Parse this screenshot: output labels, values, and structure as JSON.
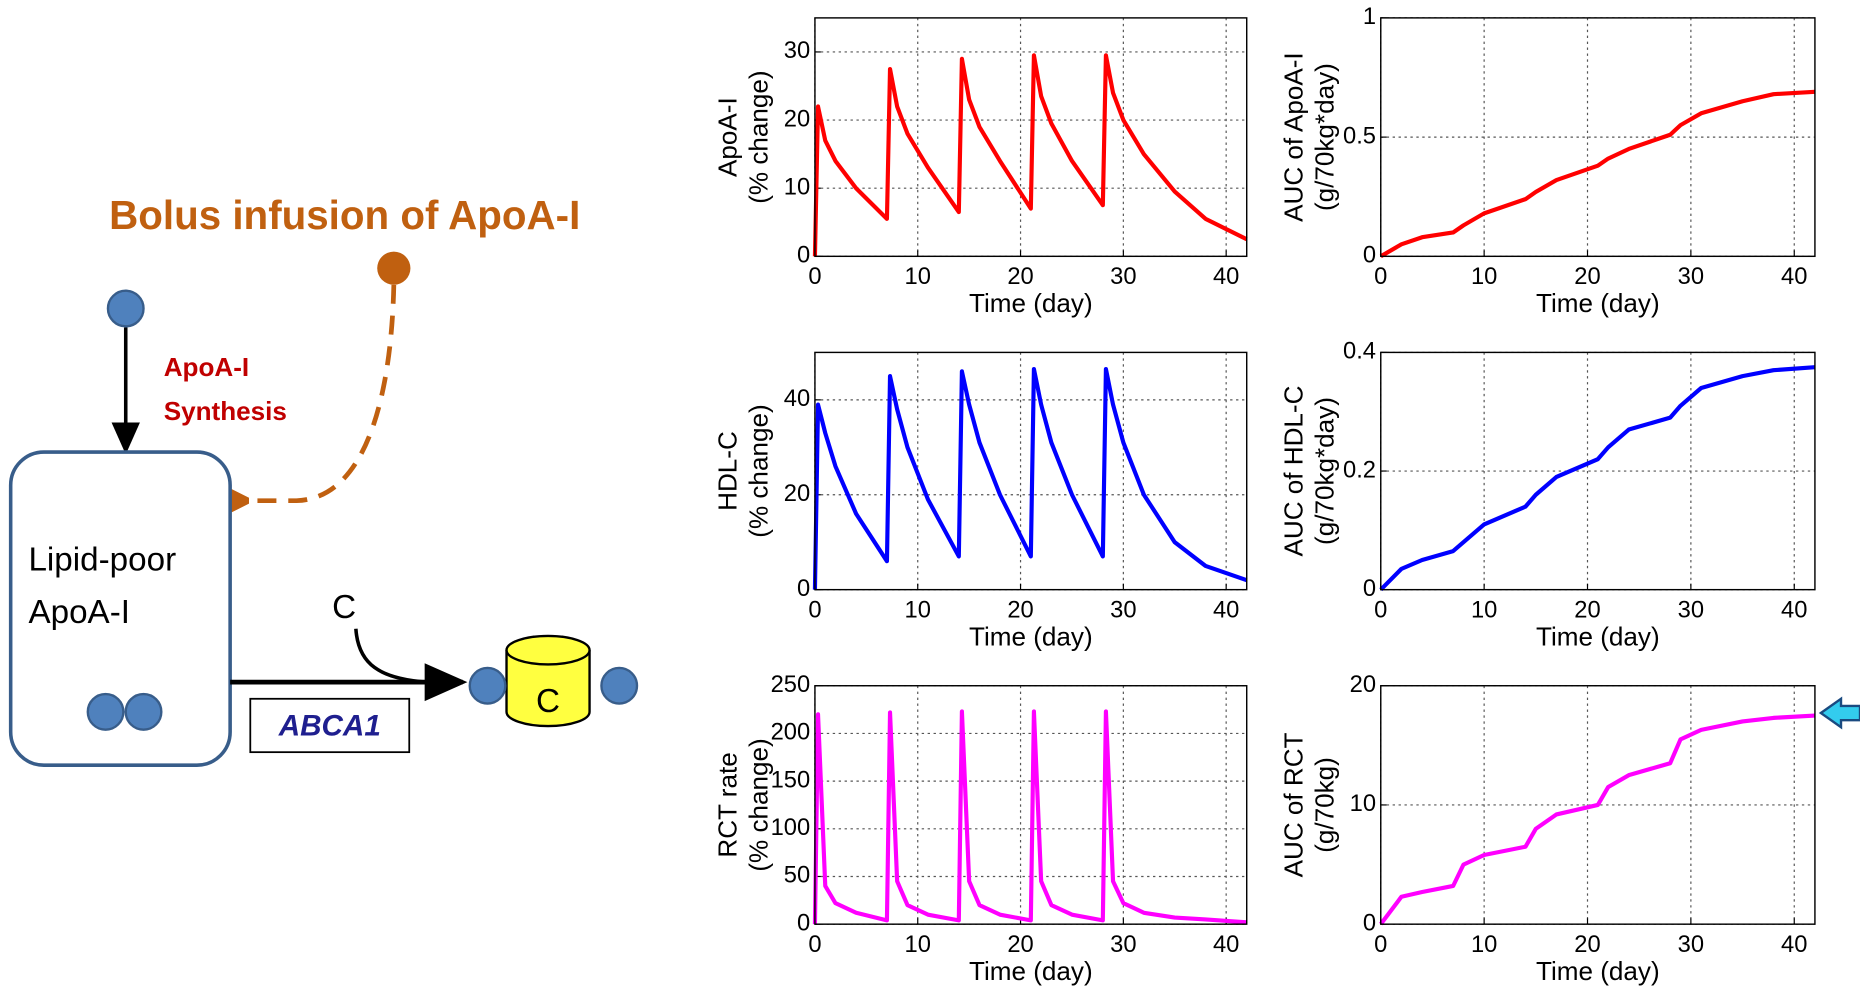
{
  "diagram": {
    "title": "Bolus infusion of ApoA-I",
    "synthesis_label": [
      "ApoA-I",
      "Synthesis"
    ],
    "box_label": [
      "Lipid-poor",
      "ApoA-I"
    ],
    "cholesterol": "C",
    "transporter": "ABCA1",
    "particle_label": "C"
  },
  "chart_data": [
    {
      "type": "line",
      "xlabel": "Time (day)",
      "ylabel": [
        "ApoA-I",
        "(% change)"
      ],
      "x": [
        0,
        0.3,
        1,
        2,
        4,
        7,
        7.3,
        8,
        9,
        11,
        14,
        14.3,
        15,
        16,
        18,
        21,
        21.3,
        22,
        23,
        25,
        28,
        28.3,
        29,
        30,
        32,
        35,
        38,
        42
      ],
      "series": [
        {
          "color": "#ff0000",
          "values": [
            0,
            22,
            17,
            14,
            10,
            5.5,
            27.5,
            22,
            18,
            13,
            6.5,
            29,
            23,
            19,
            14,
            7,
            29.5,
            23.5,
            19.5,
            14,
            7.5,
            29.5,
            24,
            20,
            15,
            9.5,
            5.5,
            2.5
          ]
        }
      ],
      "xlim": [
        0,
        42
      ],
      "xticks": [
        0,
        10,
        20,
        30,
        40
      ],
      "ylim": [
        0,
        35
      ],
      "yticks": [
        0,
        10,
        20,
        30
      ],
      "grid": true
    },
    {
      "type": "line",
      "xlabel": "Time (day)",
      "ylabel": [
        "AUC of ApoA-I",
        "(g/70kg*day)"
      ],
      "x": [
        0,
        2,
        4,
        7,
        8,
        10,
        14,
        15,
        17,
        21,
        22,
        24,
        28,
        29,
        31,
        35,
        38,
        42
      ],
      "series": [
        {
          "color": "#ff0000",
          "values": [
            0,
            0.05,
            0.08,
            0.1,
            0.13,
            0.18,
            0.24,
            0.27,
            0.32,
            0.38,
            0.41,
            0.45,
            0.51,
            0.55,
            0.6,
            0.65,
            0.68,
            0.69
          ]
        }
      ],
      "xlim": [
        0,
        42
      ],
      "xticks": [
        0,
        10,
        20,
        30,
        40
      ],
      "ylim": [
        0,
        1
      ],
      "yticks": [
        0,
        0.5,
        1
      ],
      "grid": true
    },
    {
      "type": "line",
      "xlabel": "Time (day)",
      "ylabel": [
        "HDL-C",
        "(% change)"
      ],
      "x": [
        0,
        0.3,
        1,
        2,
        4,
        7,
        7.3,
        8,
        9,
        11,
        14,
        14.3,
        15,
        16,
        18,
        21,
        21.3,
        22,
        23,
        25,
        28,
        28.3,
        29,
        30,
        32,
        35,
        38,
        42
      ],
      "series": [
        {
          "color": "#0000ff",
          "values": [
            0,
            39,
            33,
            26,
            16,
            6,
            45,
            38,
            30,
            19,
            7,
            46,
            39,
            31,
            20,
            7,
            46.5,
            39,
            31,
            20,
            7,
            46.5,
            39,
            31,
            20,
            10,
            5,
            2
          ]
        }
      ],
      "xlim": [
        0,
        42
      ],
      "xticks": [
        0,
        10,
        20,
        30,
        40
      ],
      "ylim": [
        0,
        50
      ],
      "yticks": [
        0,
        20,
        40
      ],
      "grid": true
    },
    {
      "type": "line",
      "xlabel": "Time (day)",
      "ylabel": [
        "AUC of HDL-C",
        "(g/70kg*day)"
      ],
      "x": [
        0,
        2,
        4,
        7,
        8,
        10,
        14,
        15,
        17,
        21,
        22,
        24,
        28,
        29,
        31,
        35,
        38,
        42
      ],
      "series": [
        {
          "color": "#0000ff",
          "values": [
            0,
            0.035,
            0.05,
            0.065,
            0.08,
            0.11,
            0.14,
            0.16,
            0.19,
            0.22,
            0.24,
            0.27,
            0.29,
            0.31,
            0.34,
            0.36,
            0.37,
            0.375
          ]
        }
      ],
      "xlim": [
        0,
        42
      ],
      "xticks": [
        0,
        10,
        20,
        30,
        40
      ],
      "ylim": [
        0,
        0.4
      ],
      "yticks": [
        0,
        0.2,
        0.4
      ],
      "grid": true
    },
    {
      "type": "line",
      "xlabel": "Time (day)",
      "ylabel": [
        "RCT rate",
        "(% change)"
      ],
      "x": [
        0,
        0.3,
        1,
        2,
        4,
        7,
        7.3,
        8,
        9,
        11,
        14,
        14.3,
        15,
        16,
        18,
        21,
        21.3,
        22,
        23,
        25,
        28,
        28.3,
        29,
        30,
        32,
        35,
        38,
        42
      ],
      "series": [
        {
          "color": "#ff00ff",
          "values": [
            0,
            220,
            40,
            22,
            12,
            4,
            222,
            45,
            20,
            10,
            4,
            223,
            45,
            20,
            10,
            4,
            223,
            45,
            20,
            10,
            4,
            223,
            45,
            22,
            12,
            7,
            5,
            2
          ]
        }
      ],
      "xlim": [
        0,
        42
      ],
      "xticks": [
        0,
        10,
        20,
        30,
        40
      ],
      "ylim": [
        0,
        250
      ],
      "yticks": [
        0,
        50,
        100,
        150,
        200,
        250
      ],
      "grid": true
    },
    {
      "type": "line",
      "xlabel": "Time (day)",
      "ylabel": [
        "AUC of RCT",
        "(g/70kg)"
      ],
      "x": [
        0,
        2,
        4,
        7,
        8,
        10,
        14,
        15,
        17,
        21,
        22,
        24,
        28,
        29,
        31,
        35,
        38,
        42
      ],
      "series": [
        {
          "color": "#ff00ff",
          "values": [
            0,
            2.3,
            2.7,
            3.2,
            5,
            5.8,
            6.5,
            8,
            9.2,
            10,
            11.5,
            12.5,
            13.5,
            15.5,
            16.3,
            17,
            17.3,
            17.5
          ]
        }
      ],
      "xlim": [
        0,
        42
      ],
      "xticks": [
        0,
        10,
        20,
        30,
        40
      ],
      "ylim": [
        0,
        20
      ],
      "yticks": [
        0,
        10,
        20
      ],
      "grid": true
    }
  ]
}
